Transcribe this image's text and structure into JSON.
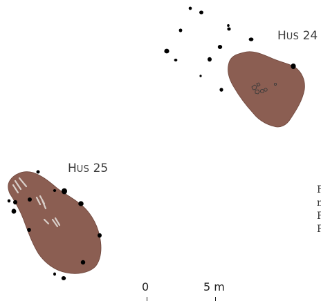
{
  "houses": [
    {
      "id": "hus24",
      "label_initial": "H",
      "label_rest": "US",
      "label_number": "24"
    },
    {
      "id": "hus25",
      "label_initial": "H",
      "label_rest": "US",
      "label_number": "25"
    }
  ],
  "scale_bar": {
    "start_label": "0",
    "end_label": "5 m"
  },
  "colors": {
    "house_fill": "#8B5E52",
    "house_stroke": "#6E463C",
    "posthole": "#000000",
    "stone_marks": "#d9cfc9"
  },
  "caption_fragments": [
    "F",
    "m",
    "F",
    "F"
  ]
}
